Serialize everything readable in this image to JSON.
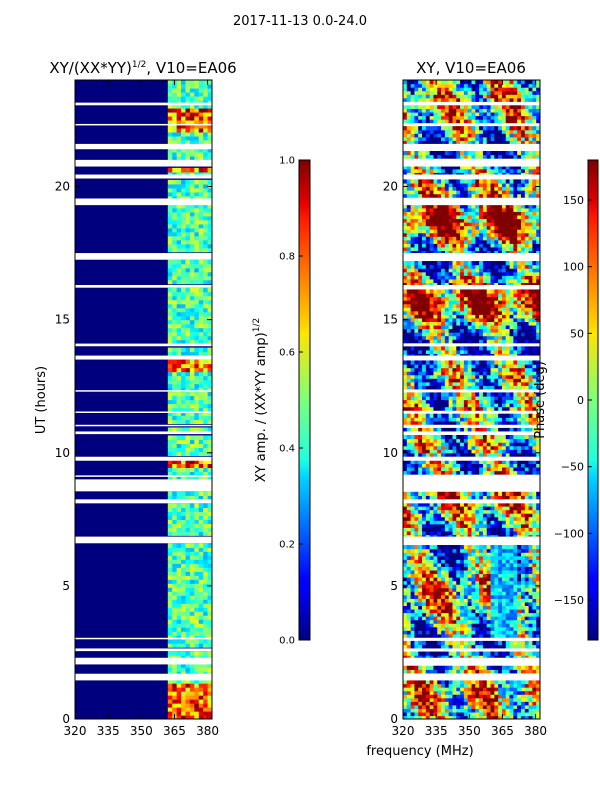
{
  "figure": {
    "suptitle": "2017-11-13 0.0-24.0",
    "xlabel": "frequency (MHz)"
  },
  "chart_data": [
    {
      "type": "heatmap",
      "title_main": "XY/(XX*YY)",
      "title_sup": "1/2",
      "title_tail": ", V10=EA06",
      "ylabel": "UT (hours)",
      "xlabel": "frequency (MHz)",
      "xlim": [
        320,
        382
      ],
      "ylim": [
        0,
        24
      ],
      "xticks": [
        320,
        335,
        350,
        365,
        380
      ],
      "yticks": [
        0,
        5,
        10,
        15,
        20
      ],
      "colorbar": {
        "label_main": "XY amp. / (XX*YY amp)",
        "label_sup": "1/2",
        "range": [
          0.0,
          1.0
        ],
        "ticks": [
          "0.0",
          "0.2",
          "0.4",
          "0.6",
          "0.8",
          "1.0"
        ],
        "colormap": "jet"
      }
    },
    {
      "type": "heatmap",
      "title": "XY, V10=EA06",
      "xlabel": "frequency (MHz)",
      "xlim": [
        320,
        382
      ],
      "ylim": [
        0,
        24
      ],
      "xticks": [
        320,
        335,
        350,
        365,
        380
      ],
      "yticks": [
        0,
        5,
        10,
        15,
        20
      ],
      "colorbar": {
        "label": "Phase (deg)",
        "range": [
          -180,
          180
        ],
        "ticks": [
          -150,
          -100,
          -50,
          0,
          50,
          100,
          150
        ],
        "colormap": "jet"
      }
    }
  ],
  "data_gaps_hours": [
    [
      1.45,
      1.7
    ],
    [
      2.05,
      2.3
    ],
    [
      2.55,
      2.65
    ],
    [
      3.0,
      3.05
    ],
    [
      6.6,
      6.85
    ],
    [
      8.1,
      8.25
    ],
    [
      8.55,
      9.0
    ],
    [
      9.1,
      9.15
    ],
    [
      9.7,
      9.85
    ],
    [
      10.7,
      10.8
    ],
    [
      11.0,
      11.05
    ],
    [
      11.5,
      11.55
    ],
    [
      12.3,
      12.35
    ],
    [
      13.5,
      13.65
    ],
    [
      14.0,
      14.1
    ],
    [
      16.2,
      16.3
    ],
    [
      17.25,
      17.5
    ],
    [
      19.3,
      19.55
    ],
    [
      20.3,
      20.45
    ],
    [
      20.75,
      21.0
    ],
    [
      21.4,
      21.6
    ],
    [
      22.3,
      22.35
    ],
    [
      23.05,
      23.15
    ]
  ],
  "active_channels_mhz": [
    [
      362,
      366
    ],
    [
      367,
      370
    ],
    [
      371,
      376
    ],
    [
      377,
      381
    ]
  ]
}
